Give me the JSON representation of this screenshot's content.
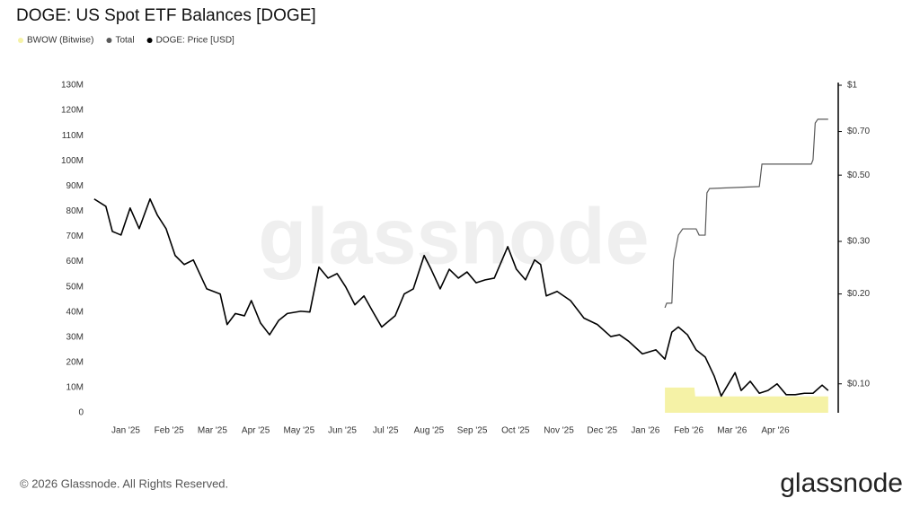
{
  "chart_data": {
    "type": "line",
    "title": "DOGE: US Spot ETF Balances [DOGE]",
    "watermark": "glassnode",
    "footer": "© 2026 Glassnode. All Rights Reserved.",
    "brand": "glassnode",
    "xlim": [
      -0.33,
      16.89
    ],
    "xticks": [
      {
        "value": 0.5,
        "label": "Jan '25"
      },
      {
        "value": 1.5,
        "label": "Feb '25"
      },
      {
        "value": 2.5,
        "label": "Mar '25"
      },
      {
        "value": 3.5,
        "label": "Apr '25"
      },
      {
        "value": 4.5,
        "label": "May '25"
      },
      {
        "value": 5.5,
        "label": "Jun '25"
      },
      {
        "value": 6.5,
        "label": "Jul '25"
      },
      {
        "value": 7.5,
        "label": "Aug '25"
      },
      {
        "value": 8.5,
        "label": "Sep '25"
      },
      {
        "value": 9.5,
        "label": "Oct '25"
      },
      {
        "value": 10.5,
        "label": "Nov '25"
      },
      {
        "value": 11.5,
        "label": "Dec '25"
      },
      {
        "value": 12.5,
        "label": "Jan '26"
      },
      {
        "value": 13.5,
        "label": "Feb '26"
      },
      {
        "value": 14.5,
        "label": "Mar '26"
      },
      {
        "value": 15.5,
        "label": "Apr '26"
      }
    ],
    "ylim": [
      0,
      130000000
    ],
    "yticks": [
      0,
      {
        "value": 10000000,
        "label": "10M"
      },
      {
        "value": 20000000,
        "label": "20M"
      },
      {
        "value": 30000000,
        "label": "30M"
      },
      {
        "value": 40000000,
        "label": "40M"
      },
      {
        "value": 50000000,
        "label": "50M"
      },
      {
        "value": 60000000,
        "label": "60M"
      },
      {
        "value": 70000000,
        "label": "70M"
      },
      {
        "value": 80000000,
        "label": "80M"
      },
      {
        "value": 90000000,
        "label": "90M"
      },
      {
        "value": 100000000,
        "label": "100M"
      },
      {
        "value": 110000000,
        "label": "110M"
      },
      {
        "value": 120000000,
        "label": "120M"
      },
      {
        "value": 130000000,
        "label": "130M"
      }
    ],
    "y2lim": [
      0.08,
      1
    ],
    "y2log": true,
    "y2ticks": [
      {
        "value": 0.1,
        "label": "$0.10"
      },
      {
        "value": 0.2,
        "label": "$0.20"
      },
      {
        "value": 0.3,
        "label": "$0.30"
      },
      {
        "value": 0.5,
        "label": "$0.50"
      },
      {
        "value": 0.7,
        "label": "$0.70"
      },
      {
        "value": 1,
        "label": "$1"
      }
    ],
    "series": [
      {
        "name": "BWOW (Bitwise)",
        "color": "#f5f2a6",
        "mark": "area",
        "x": [
          12.95,
          13.63,
          13.65,
          16.72
        ],
        "values": [
          10000000,
          10000000,
          6500000,
          6500000
        ]
      },
      {
        "name": "Total",
        "color": "#5a5a5a",
        "mark": "line",
        "x": [
          12.95,
          12.99,
          13.11,
          13.15,
          13.26,
          13.36,
          13.67,
          13.74,
          13.88,
          13.92,
          13.98,
          15.13,
          15.19,
          16.33,
          16.37,
          16.42,
          16.48,
          16.72
        ],
        "values": [
          41700000,
          43500000,
          43500000,
          60500000,
          70500000,
          73000000,
          73000000,
          70500000,
          70500000,
          87300000,
          89000000,
          89800000,
          98700000,
          98700000,
          100400000,
          115000000,
          116500000,
          116500000
        ]
      },
      {
        "name": "DOGE: Price [USD]",
        "color": "#000000",
        "mark": "line",
        "axis": "y2",
        "x": [
          -0.23,
          0.04,
          0.19,
          0.39,
          0.6,
          0.81,
          1.06,
          1.23,
          1.43,
          1.64,
          1.85,
          2.06,
          2.37,
          2.68,
          2.84,
          3.03,
          3.24,
          3.4,
          3.61,
          3.82,
          4.03,
          4.23,
          4.54,
          4.75,
          4.96,
          5.17,
          5.38,
          5.58,
          5.79,
          6.0,
          6.21,
          6.41,
          6.72,
          6.93,
          7.14,
          7.39,
          7.55,
          7.76,
          7.97,
          8.18,
          8.38,
          8.59,
          8.8,
          9.01,
          9.32,
          9.52,
          9.73,
          9.94,
          10.08,
          10.21,
          10.46,
          10.77,
          11.08,
          11.39,
          11.7,
          11.9,
          12.11,
          12.43,
          12.74,
          12.95,
          13.11,
          13.26,
          13.47,
          13.67,
          13.88,
          14.09,
          14.25,
          14.4,
          14.57,
          14.71,
          14.92,
          15.13,
          15.33,
          15.54,
          15.75,
          15.96,
          16.17,
          16.37,
          16.58,
          16.72
        ],
        "values": [
          0.416,
          0.393,
          0.324,
          0.315,
          0.388,
          0.331,
          0.416,
          0.367,
          0.331,
          0.269,
          0.251,
          0.26,
          0.208,
          0.2,
          0.158,
          0.172,
          0.169,
          0.19,
          0.16,
          0.146,
          0.163,
          0.172,
          0.175,
          0.174,
          0.246,
          0.226,
          0.234,
          0.211,
          0.184,
          0.197,
          0.174,
          0.155,
          0.169,
          0.2,
          0.208,
          0.269,
          0.242,
          0.208,
          0.242,
          0.226,
          0.237,
          0.218,
          0.223,
          0.226,
          0.288,
          0.242,
          0.223,
          0.26,
          0.251,
          0.197,
          0.204,
          0.19,
          0.166,
          0.158,
          0.144,
          0.146,
          0.139,
          0.126,
          0.13,
          0.121,
          0.149,
          0.155,
          0.146,
          0.13,
          0.123,
          0.106,
          0.091,
          0.099,
          0.109,
          0.095,
          0.102,
          0.093,
          0.095,
          0.1,
          0.092,
          0.092,
          0.093,
          0.093,
          0.099,
          0.095
        ]
      }
    ]
  }
}
